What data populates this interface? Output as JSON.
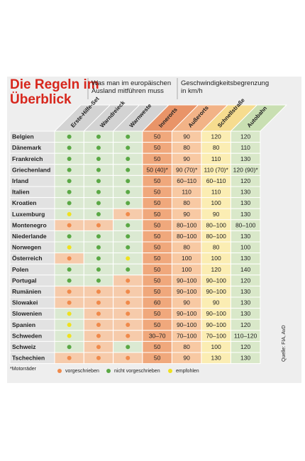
{
  "header": {
    "title": "Die Regeln im Überblick",
    "equipment_heading": "Was man im europäischen Ausland mitführen muss",
    "speed_heading": "Geschwindigkeitsbegrenzung in km/h"
  },
  "columns": {
    "equipment": [
      "Erste-Hilfe-Set",
      "Warndreieck",
      "Warnweste"
    ],
    "speed": [
      "Innerorts",
      "Außerorts",
      "Schnellstraße",
      "Autobahn"
    ]
  },
  "legend": {
    "note": "*Motorräder",
    "items": [
      {
        "label": "vorgeschrieben",
        "color": "#f08a4b"
      },
      {
        "label": "nicht vorgeschrieben",
        "color": "#5aa845"
      },
      {
        "label": "empfohlen",
        "color": "#efe11e"
      }
    ]
  },
  "source": "Quelle: FIA, AvD",
  "rows": [
    {
      "country": "Belgien",
      "equipment": [
        "#5aa845",
        "#5aa845",
        "#5aa845"
      ],
      "speed": [
        "50",
        "90",
        "120",
        "120"
      ]
    },
    {
      "country": "Dänemark",
      "equipment": [
        "#5aa845",
        "#5aa845",
        "#5aa845"
      ],
      "speed": [
        "50",
        "80",
        "80",
        "110"
      ]
    },
    {
      "country": "Frankreich",
      "equipment": [
        "#5aa845",
        "#5aa845",
        "#5aa845"
      ],
      "speed": [
        "50",
        "90",
        "110",
        "130"
      ]
    },
    {
      "country": "Griechenland",
      "equipment": [
        "#5aa845",
        "#5aa845",
        "#5aa845"
      ],
      "speed": [
        "50 (40)*",
        "90 (70)*",
        "110 (70)*",
        "120 (90)*"
      ]
    },
    {
      "country": "Irland",
      "equipment": [
        "#5aa845",
        "#5aa845",
        "#5aa845"
      ],
      "speed": [
        "50",
        "60–110",
        "60–110",
        "120"
      ]
    },
    {
      "country": "Italien",
      "equipment": [
        "#5aa845",
        "#5aa845",
        "#5aa845"
      ],
      "speed": [
        "50",
        "110",
        "110",
        "130"
      ]
    },
    {
      "country": "Kroatien",
      "equipment": [
        "#5aa845",
        "#5aa845",
        "#5aa845"
      ],
      "speed": [
        "50",
        "80",
        "100",
        "130"
      ]
    },
    {
      "country": "Luxemburg",
      "equipment": [
        "#efe11e",
        "#5aa845",
        "#f08a4b"
      ],
      "speed": [
        "50",
        "90",
        "90",
        "130"
      ]
    },
    {
      "country": "Montenegro",
      "equipment": [
        "#f08a4b",
        "#f08a4b",
        "#5aa845"
      ],
      "speed": [
        "50",
        "80–100",
        "80–100",
        "80–100"
      ]
    },
    {
      "country": "Niederlande",
      "equipment": [
        "#5aa845",
        "#5aa845",
        "#5aa845"
      ],
      "speed": [
        "50",
        "80–100",
        "80–100",
        "130"
      ]
    },
    {
      "country": "Norwegen",
      "equipment": [
        "#efe11e",
        "#5aa845",
        "#5aa845"
      ],
      "speed": [
        "50",
        "80",
        "80",
        "100"
      ]
    },
    {
      "country": "Österreich",
      "equipment": [
        "#f08a4b",
        "#5aa845",
        "#efe11e"
      ],
      "speed": [
        "50",
        "100",
        "100",
        "130"
      ]
    },
    {
      "country": "Polen",
      "equipment": [
        "#5aa845",
        "#5aa845",
        "#5aa845"
      ],
      "speed": [
        "50",
        "100",
        "120",
        "140"
      ]
    },
    {
      "country": "Portugal",
      "equipment": [
        "#5aa845",
        "#5aa845",
        "#f08a4b"
      ],
      "speed": [
        "50",
        "90–100",
        "90–100",
        "120"
      ]
    },
    {
      "country": "Rumänien",
      "equipment": [
        "#f08a4b",
        "#f08a4b",
        "#f08a4b"
      ],
      "speed": [
        "50",
        "90–100",
        "90–100",
        "130"
      ]
    },
    {
      "country": "Slowakei",
      "equipment": [
        "#f08a4b",
        "#f08a4b",
        "#f08a4b"
      ],
      "speed": [
        "60",
        "90",
        "90",
        "130"
      ]
    },
    {
      "country": "Slowenien",
      "equipment": [
        "#efe11e",
        "#f08a4b",
        "#f08a4b"
      ],
      "speed": [
        "50",
        "90–100",
        "90–100",
        "130"
      ]
    },
    {
      "country": "Spanien",
      "equipment": [
        "#efe11e",
        "#f08a4b",
        "#f08a4b"
      ],
      "speed": [
        "50",
        "90–100",
        "90–100",
        "120"
      ]
    },
    {
      "country": "Schweden",
      "equipment": [
        "#efe11e",
        "#f08a4b",
        "#f08a4b"
      ],
      "speed": [
        "30–70",
        "70–100",
        "70–100",
        "110–120"
      ]
    },
    {
      "country": "Schweiz",
      "equipment": [
        "#5aa845",
        "#f08a4b",
        "#5aa845"
      ],
      "speed": [
        "50",
        "80",
        "100",
        "120"
      ]
    },
    {
      "country": "Tschechien",
      "equipment": [
        "#f08a4b",
        "#f08a4b",
        "#f08a4b"
      ],
      "speed": [
        "50",
        "90",
        "130",
        "130"
      ]
    }
  ]
}
